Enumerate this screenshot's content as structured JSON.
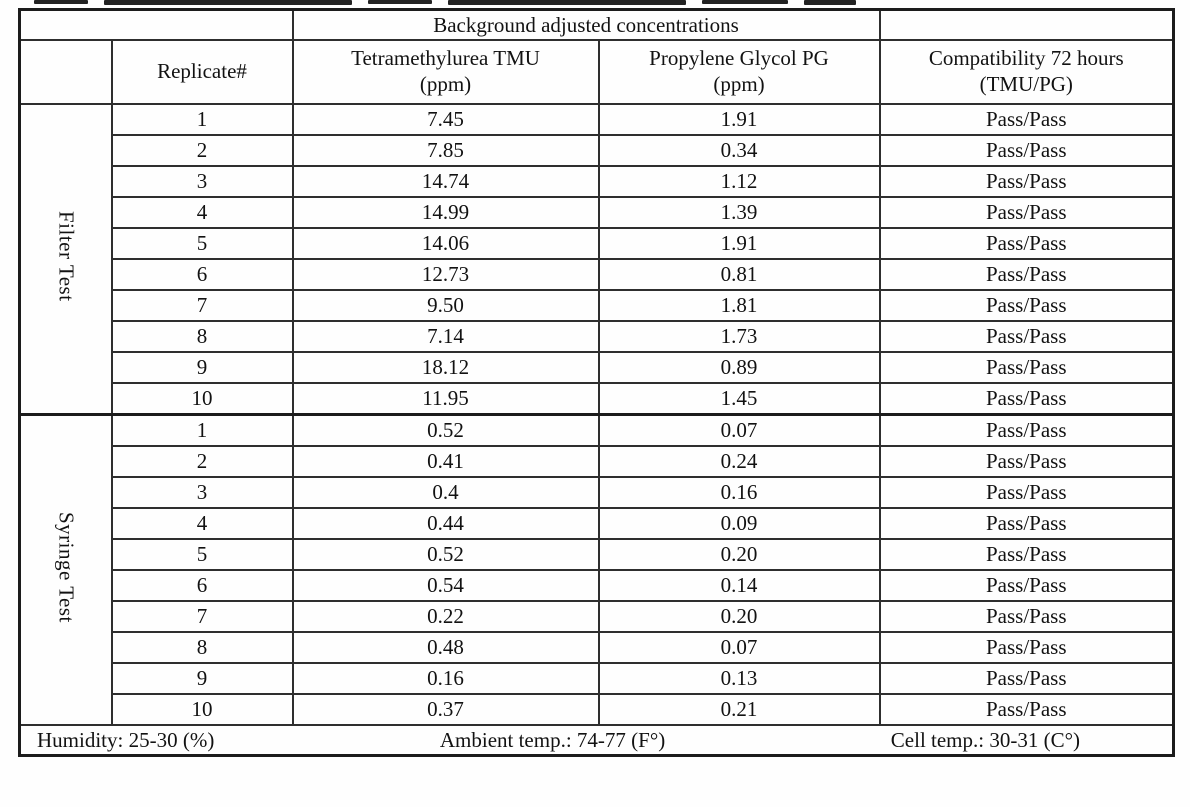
{
  "table": {
    "group_header": "Background adjusted concentrations",
    "columns": {
      "replicate": "Replicate#",
      "tmu_name": "Tetramethylurea TMU",
      "tmu_unit": "(ppm)",
      "pg_name": "Propylene Glycol PG",
      "pg_unit": "(ppm)",
      "compat_name": "Compatibility 72 hours",
      "compat_unit": "(TMU/PG)"
    },
    "sections": [
      {
        "label": "Filter Test",
        "rows": [
          {
            "replicate": "1",
            "tmu": "7.45",
            "pg": "1.91",
            "compat": "Pass/Pass"
          },
          {
            "replicate": "2",
            "tmu": "7.85",
            "pg": "0.34",
            "compat": "Pass/Pass"
          },
          {
            "replicate": "3",
            "tmu": "14.74",
            "pg": "1.12",
            "compat": "Pass/Pass"
          },
          {
            "replicate": "4",
            "tmu": "14.99",
            "pg": "1.39",
            "compat": "Pass/Pass"
          },
          {
            "replicate": "5",
            "tmu": "14.06",
            "pg": "1.91",
            "compat": "Pass/Pass"
          },
          {
            "replicate": "6",
            "tmu": "12.73",
            "pg": "0.81",
            "compat": "Pass/Pass"
          },
          {
            "replicate": "7",
            "tmu": "9.50",
            "pg": "1.81",
            "compat": "Pass/Pass"
          },
          {
            "replicate": "8",
            "tmu": "7.14",
            "pg": "1.73",
            "compat": "Pass/Pass"
          },
          {
            "replicate": "9",
            "tmu": "18.12",
            "pg": "0.89",
            "compat": "Pass/Pass"
          },
          {
            "replicate": "10",
            "tmu": "11.95",
            "pg": "1.45",
            "compat": "Pass/Pass"
          }
        ]
      },
      {
        "label": "Syringe Test",
        "rows": [
          {
            "replicate": "1",
            "tmu": "0.52",
            "pg": "0.07",
            "compat": "Pass/Pass"
          },
          {
            "replicate": "2",
            "tmu": "0.41",
            "pg": "0.24",
            "compat": "Pass/Pass"
          },
          {
            "replicate": "3",
            "tmu": "0.4",
            "pg": "0.16",
            "compat": "Pass/Pass"
          },
          {
            "replicate": "4",
            "tmu": "0.44",
            "pg": "0.09",
            "compat": "Pass/Pass"
          },
          {
            "replicate": "5",
            "tmu": "0.52",
            "pg": "0.20",
            "compat": "Pass/Pass"
          },
          {
            "replicate": "6",
            "tmu": "0.54",
            "pg": "0.14",
            "compat": "Pass/Pass"
          },
          {
            "replicate": "7",
            "tmu": "0.22",
            "pg": "0.20",
            "compat": "Pass/Pass"
          },
          {
            "replicate": "8",
            "tmu": "0.48",
            "pg": "0.07",
            "compat": "Pass/Pass"
          },
          {
            "replicate": "9",
            "tmu": "0.16",
            "pg": "0.13",
            "compat": "Pass/Pass"
          },
          {
            "replicate": "10",
            "tmu": "0.37",
            "pg": "0.21",
            "compat": "Pass/Pass"
          }
        ]
      }
    ],
    "footer": {
      "humidity": "Humidity: 25-30 (%)",
      "ambient": "Ambient temp.: 74-77 (F°)",
      "cell": "Cell temp.: 30-31 (C°)"
    }
  }
}
